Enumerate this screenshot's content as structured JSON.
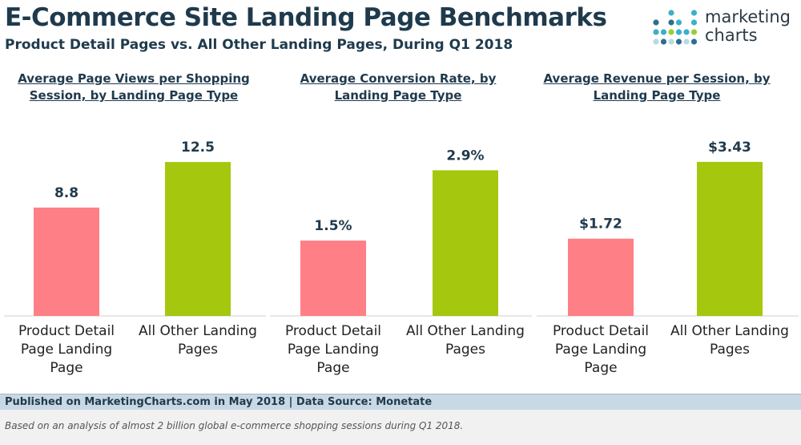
{
  "header": {
    "title": "E-Commerce Site Landing Page Benchmarks",
    "subtitle": "Product Detail Pages vs. All Other Landing Pages, During Q1 2018"
  },
  "logo": {
    "line1": "marketing",
    "line2": "charts",
    "dot_colors": [
      "#3bb0c9",
      "#2b6f8f",
      "#9acd32",
      "#b9d9e6"
    ]
  },
  "colors": {
    "product_detail": "#ff7f86",
    "all_other": "#a5c70e",
    "value_label": "#1f3a4d",
    "category_label": "#222222",
    "axis": "#cfcfcf"
  },
  "chart_data": [
    {
      "type": "bar",
      "title": "Average Page Views per Shopping Session, by Landing Page Type",
      "categories": [
        "Product Detail Page Landing Page",
        "All Other Landing Pages"
      ],
      "values": [
        8.8,
        12.5
      ],
      "value_labels": [
        "8.8",
        "12.5"
      ],
      "ylim": [
        0,
        15.5
      ]
    },
    {
      "type": "bar",
      "title": "Average Conversion Rate, by Landing Page Type",
      "categories": [
        "Product Detail Page Landing Page",
        "All Other Landing Pages"
      ],
      "values": [
        1.5,
        2.9
      ],
      "value_labels": [
        "1.5%",
        "2.9%"
      ],
      "ylim": [
        0,
        3.8
      ]
    },
    {
      "type": "bar",
      "title": "Average Revenue per Session, by Landing Page Type",
      "categories": [
        "Product Detail Page Landing Page",
        "All Other Landing Pages"
      ],
      "values": [
        1.72,
        3.43
      ],
      "value_labels": [
        "$1.72",
        "$3.43"
      ],
      "ylim": [
        0,
        4.25
      ]
    }
  ],
  "panel_titles": [
    [
      "Average Page Views per Shopping",
      "Session, by Landing Page Type"
    ],
    [
      "Average Conversion Rate, by",
      "Landing Page Type"
    ],
    [
      "Average Revenue per Session, by",
      "Landing Page Type"
    ]
  ],
  "category_label_lines": [
    [
      "Product Detail",
      "Page Landing",
      "Page"
    ],
    [
      "All Other Landing",
      "Pages"
    ]
  ],
  "footer": {
    "source": "Published on MarketingCharts.com in May 2018 | Data Source: Monetate",
    "note": "Based on an analysis of almost 2 billion global e-commerce shopping sessions during Q1 2018."
  }
}
